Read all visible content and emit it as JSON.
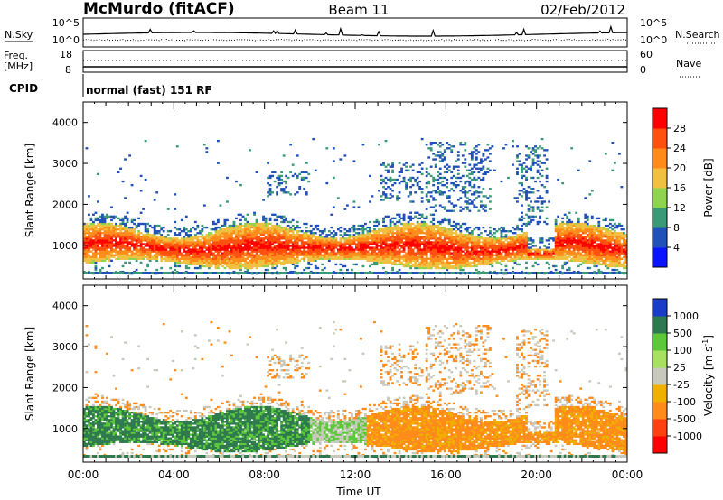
{
  "header": {
    "site": "McMurdo (fitACF)",
    "beam": "Beam 11",
    "date": "02/Feb/2012"
  },
  "top_panels": {
    "nsky_label": "N.Sky",
    "nsky_ticks": [
      "10^5",
      "10^0"
    ],
    "nsearch_label": "N.Search",
    "nsearch_ticks": [
      "10^5",
      "10^0"
    ],
    "freq_label": "Freq.",
    "freq_unit": "[MHz]",
    "freq_ticks": [
      "18",
      "8"
    ],
    "nave_label": "Nave",
    "nave_ticks": [
      "60",
      "0"
    ],
    "cpid_label": "CPID",
    "cpid_text": "normal (fast) 151 RF"
  },
  "chart_data": [
    {
      "type": "heatmap",
      "name": "power",
      "ylabel": "Slant Range [km]",
      "xlabel": "",
      "ylim": [
        180,
        4500
      ],
      "xlim_hours": [
        0,
        24
      ],
      "y_ticks": [
        "1000",
        "2000",
        "3000",
        "4000"
      ],
      "y_tick_values": [
        1000,
        2000,
        3000,
        4000
      ],
      "colorbar_label": "Power [dB]",
      "colorbar_ticks": [
        "4",
        "8",
        "12",
        "16",
        "20",
        "24",
        "28"
      ],
      "colorbar_tick_values": [
        4,
        8,
        12,
        16,
        20,
        24,
        28
      ],
      "colorbar_range": [
        0,
        32
      ],
      "colorbar_colors": [
        "#0a14ff",
        "#2050b8",
        "#3a9a78",
        "#8ed44e",
        "#f0c040",
        "#ff8c1a",
        "#ff5010",
        "#ff0000"
      ]
    },
    {
      "type": "heatmap",
      "name": "velocity",
      "ylabel": "Slant Range [km]",
      "xlabel": "Time UT",
      "ylim": [
        180,
        4500
      ],
      "xlim_hours": [
        0,
        24
      ],
      "y_ticks": [
        "1000",
        "2000",
        "3000",
        "4000"
      ],
      "y_tick_values": [
        1000,
        2000,
        3000,
        4000
      ],
      "x_ticks": [
        "00:00",
        "04:00",
        "08:00",
        "12:00",
        "16:00",
        "20:00",
        "00:00"
      ],
      "x_tick_values": [
        0,
        4,
        8,
        12,
        16,
        20,
        24
      ],
      "colorbar_label": "Velocity [m s",
      "colorbar_label_sup": "-1",
      "colorbar_label_end": "]",
      "colorbar_ticks": [
        "1000",
        "500",
        "100",
        "25",
        "-25",
        "-100",
        "-500",
        "-1000"
      ],
      "colorbar_colors": [
        "#1b3cc8",
        "#2e7a4e",
        "#5cc83a",
        "#a8e060",
        "#c8c8bc",
        "#f0b000",
        "#ff8c1a",
        "#ff4010",
        "#ff0000"
      ]
    }
  ]
}
